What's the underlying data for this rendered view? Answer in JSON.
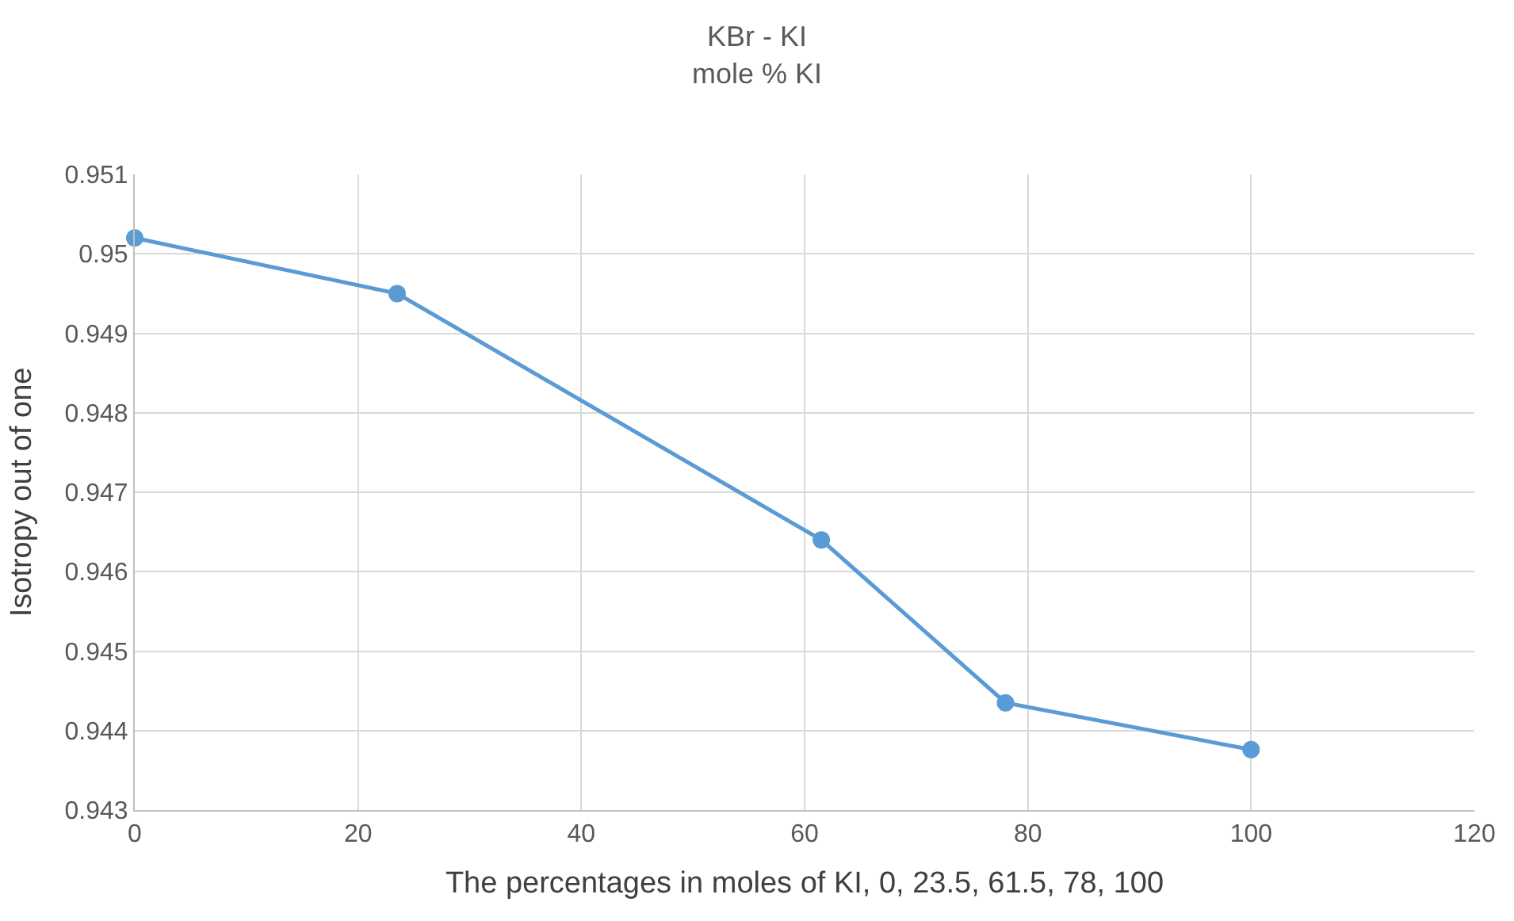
{
  "chart_data": {
    "type": "line",
    "title": "KBr - KI",
    "subtitle": "mole % KI",
    "xlabel": "The percentages in moles of KI, 0, 23.5, 61.5, 78, 100",
    "ylabel": "Isotropy out of one",
    "x": [
      0,
      23.5,
      61.5,
      78,
      100
    ],
    "series": [
      {
        "color": "#5b9bd5",
        "values": [
          0.9502,
          0.9495,
          0.9464,
          0.94435,
          0.94376
        ]
      }
    ],
    "xlim": [
      0,
      120
    ],
    "xticks": [
      0,
      20,
      40,
      60,
      80,
      100,
      120
    ],
    "ylim": [
      0.943,
      0.951
    ],
    "yticks": [
      0.943,
      0.944,
      0.945,
      0.946,
      0.947,
      0.948,
      0.949,
      0.95,
      0.951
    ],
    "grid": true,
    "marker": "circle",
    "line_style": "solid",
    "legend": false
  }
}
